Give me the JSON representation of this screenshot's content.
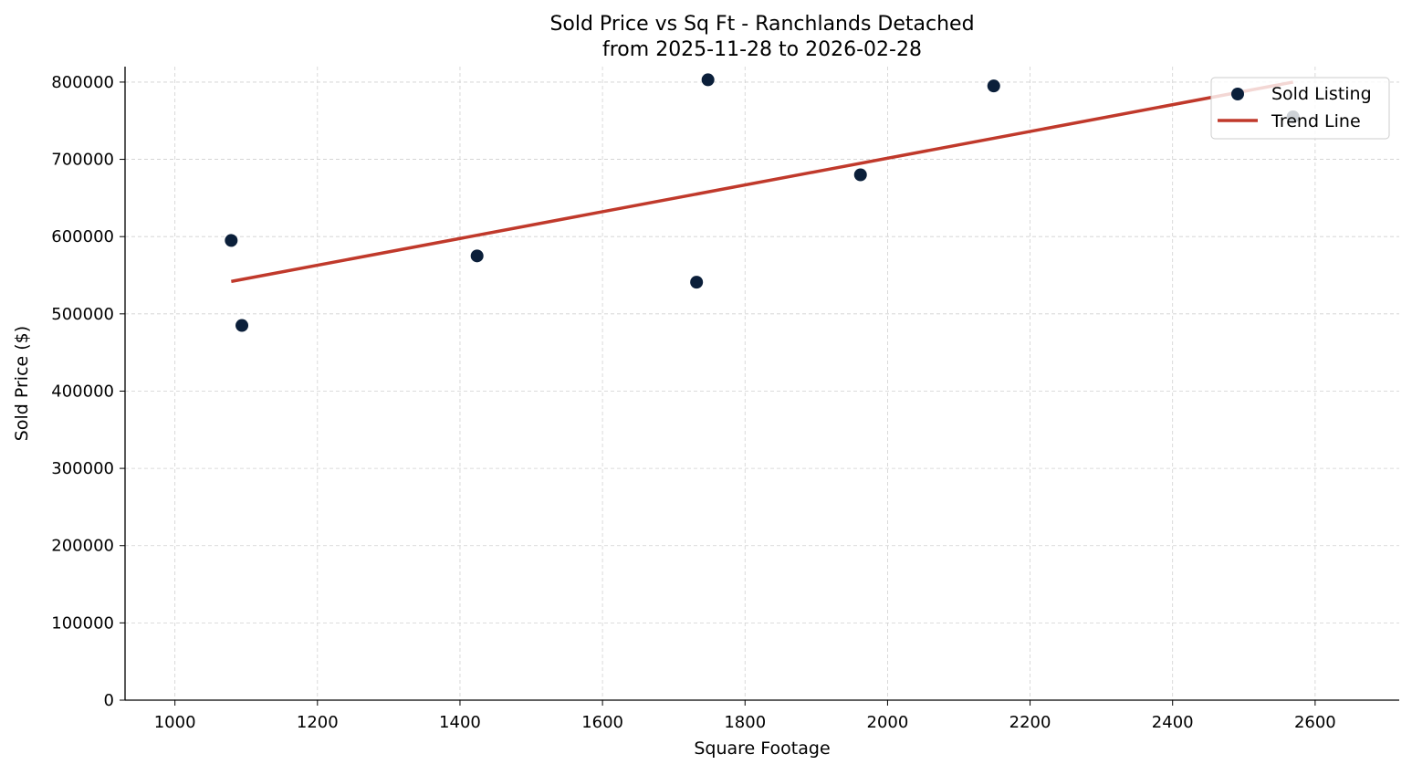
{
  "chart_data": {
    "type": "scatter",
    "title": "Sold Price vs Sq Ft - Ranchlands Detached",
    "subtitle": "from 2025-11-28 to 2026-02-28",
    "xlabel": "Square Footage",
    "ylabel": "Sold Price ($)",
    "xlim": [
      930,
      2718
    ],
    "ylim": [
      0,
      820000
    ],
    "xticks": [
      1000,
      1200,
      1400,
      1600,
      1800,
      2000,
      2200,
      2400,
      2600
    ],
    "yticks": [
      0,
      100000,
      200000,
      300000,
      400000,
      500000,
      600000,
      700000,
      800000
    ],
    "grid": true,
    "legend_position": "top-right",
    "series": [
      {
        "name": "Sold Listing",
        "type": "scatter",
        "color": "#0b1f3a",
        "points": [
          {
            "x": 1079,
            "y": 595000
          },
          {
            "x": 1094,
            "y": 485000
          },
          {
            "x": 1424,
            "y": 575000
          },
          {
            "x": 1732,
            "y": 541000
          },
          {
            "x": 1748,
            "y": 803000
          },
          {
            "x": 1962,
            "y": 680000
          },
          {
            "x": 2149,
            "y": 795000
          },
          {
            "x": 2569,
            "y": 755000
          }
        ]
      },
      {
        "name": "Trend Line",
        "type": "line",
        "color": "#c0392b",
        "points": [
          {
            "x": 1079,
            "y": 542000
          },
          {
            "x": 2569,
            "y": 800000
          }
        ]
      }
    ]
  }
}
